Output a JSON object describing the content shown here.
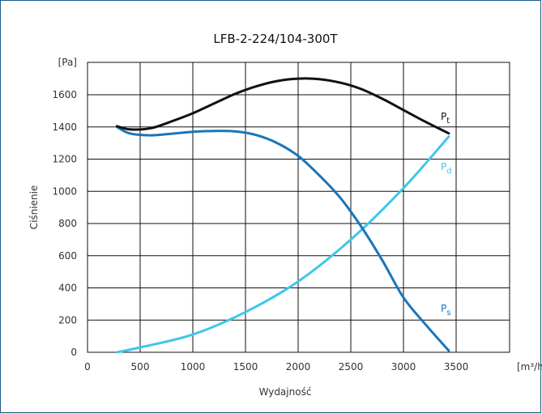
{
  "chart_data": {
    "type": "line",
    "title": "LFB-2-224/104-300T",
    "xlabel": "Wydajność",
    "ylabel": "Ciśnienie",
    "x_unit": "[m³/h]",
    "y_unit": "[Pa]",
    "xlim": [
      0,
      3500
    ],
    "ylim": [
      0,
      1600
    ],
    "x_ticks": [
      "0",
      "500",
      "1000",
      "1500",
      "2000",
      "2500",
      "3000",
      "3500"
    ],
    "y_ticks": [
      "0",
      "200",
      "400",
      "600",
      "800",
      "1000",
      "1200",
      "1400",
      "1600"
    ],
    "grid": true,
    "series": [
      {
        "name": "Pt",
        "label_main": "P",
        "label_sub": "t",
        "color": "#111111",
        "x": [
          280,
          400,
          600,
          800,
          1000,
          1200,
          1400,
          1600,
          1800,
          2000,
          2200,
          2400,
          2600,
          2800,
          3000,
          3200,
          3430
        ],
        "y": [
          1405,
          1385,
          1392,
          1435,
          1485,
          1545,
          1605,
          1652,
          1685,
          1700,
          1697,
          1675,
          1635,
          1575,
          1505,
          1435,
          1360
        ]
      },
      {
        "name": "Pd",
        "label_main": "P",
        "label_sub": "d",
        "color": "#3ec7ea",
        "x": [
          280,
          500,
          1000,
          1500,
          2000,
          2500,
          3000,
          3430
        ],
        "y": [
          0,
          30,
          110,
          250,
          440,
          700,
          1020,
          1340
        ]
      },
      {
        "name": "Ps",
        "label_main": "P",
        "label_sub": "s",
        "color": "#1976ba",
        "x": [
          280,
          400,
          600,
          800,
          1000,
          1200,
          1400,
          1600,
          1800,
          2000,
          2200,
          2400,
          2600,
          2800,
          3000,
          3200,
          3430
        ],
        "y": [
          1400,
          1360,
          1348,
          1358,
          1370,
          1375,
          1372,
          1350,
          1300,
          1220,
          1100,
          960,
          780,
          570,
          340,
          180,
          10
        ]
      }
    ]
  }
}
